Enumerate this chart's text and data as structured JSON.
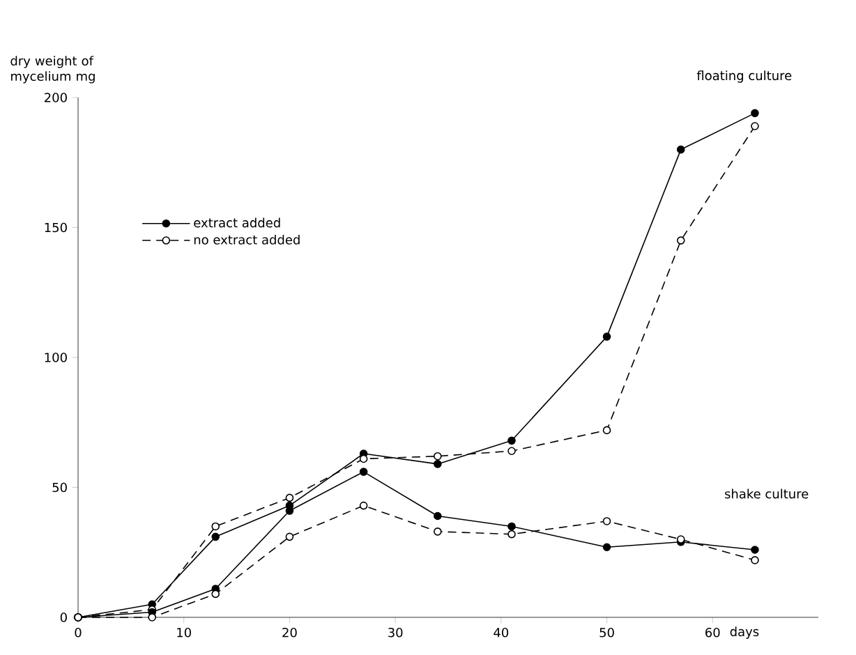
{
  "chart_data": {
    "type": "line",
    "xlabel": "days",
    "ylabel": "dry weight of mycelium mg",
    "x": [
      0,
      7,
      13,
      20,
      27,
      34,
      41,
      50,
      57,
      64
    ],
    "series": [
      {
        "name": "extract added",
        "color": "#000000",
        "marker": "circle",
        "line_style": "solid",
        "values": [
          0,
          5,
          31,
          43,
          63,
          59,
          68,
          108,
          180,
          194
        ]
      },
      {
        "name": "no extract added",
        "color": "#000000",
        "marker": "circle",
        "line_style": "dashed",
        "values": [
          0,
          3,
          35,
          46,
          61,
          62,
          64,
          72,
          145,
          189
        ]
      },
      {
        "color": "#000000",
        "marker": "circle",
        "line_style": "solid",
        "values": [
          0,
          2,
          11,
          41,
          56,
          39,
          35,
          27,
          29,
          26
        ]
      },
      {
        "color": "#000000",
        "marker": "circle",
        "line_style": "dashed",
        "values": [
          0,
          0,
          9,
          31,
          43,
          33,
          32,
          37,
          30,
          22
        ]
      }
    ],
    "annotations": [
      "floating culture",
      "shake culture"
    ],
    "xlim": [
      0,
      70
    ],
    "ylim": [
      0,
      200
    ],
    "xticks": [
      0,
      10,
      20,
      30,
      40,
      50,
      60
    ],
    "yticks": [
      0,
      50,
      100,
      150,
      200
    ],
    "grid": false,
    "legend": "top left"
  }
}
